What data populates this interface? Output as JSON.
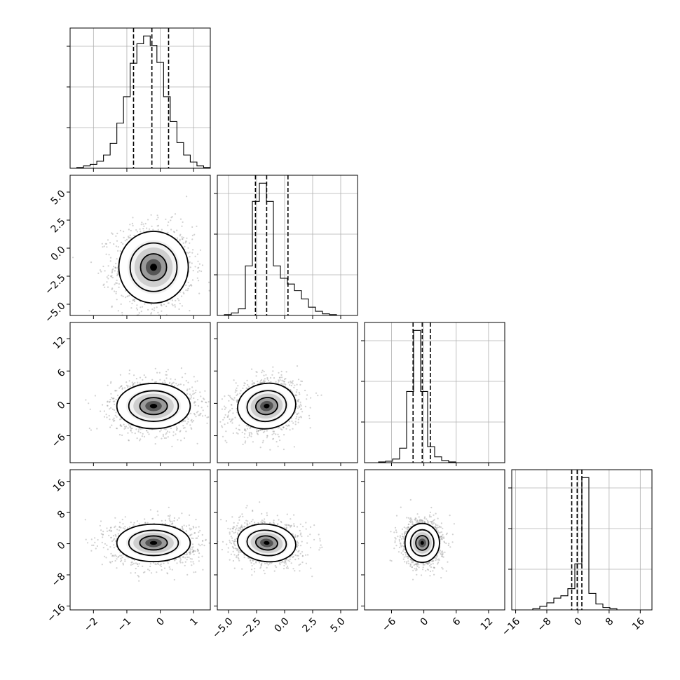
{
  "chart_data": {
    "type": "corner",
    "grid": true,
    "parameters": [
      {
        "index": 0,
        "range": [
          -2.7,
          1.5
        ],
        "ticks": [
          -2,
          -1,
          0,
          1
        ],
        "tick_labels": [
          "−2",
          "−1",
          "0",
          "1"
        ],
        "quantiles": [
          -0.8,
          -0.25,
          0.25
        ],
        "hist_counts": [
          0,
          1,
          3,
          5,
          9,
          17,
          32,
          58,
          92,
          135,
          160,
          170,
          158,
          136,
          92,
          60,
          33,
          17,
          8,
          3,
          1
        ]
      },
      {
        "index": 1,
        "range": [
          -6.0,
          6.5
        ],
        "ticks": [
          -5.0,
          -2.5,
          0.0,
          2.5,
          5.0
        ],
        "tick_labels": [
          "−5.0",
          "−2.5",
          "0.0",
          "2.5",
          "5.0"
        ],
        "quantiles": [
          -2.6,
          -1.6,
          0.3
        ],
        "hist_counts": [
          0,
          1,
          3,
          8,
          60,
          138,
          160,
          138,
          60,
          45,
          38,
          30,
          20,
          10,
          5,
          2,
          1,
          0,
          0,
          0
        ]
      },
      {
        "index": 2,
        "range": [
          -11,
          15
        ],
        "ticks": [
          -6,
          0,
          6,
          12
        ],
        "tick_labels": [
          "−6",
          "0",
          "6",
          "12"
        ],
        "quantiles": [
          -2.0,
          -0.3,
          1.2
        ],
        "hist_counts": [
          0,
          0,
          1,
          2,
          5,
          20,
          98,
          182,
          98,
          22,
          8,
          3,
          1,
          0,
          0,
          0,
          0,
          0,
          0,
          0
        ]
      },
      {
        "index": 3,
        "range": [
          -17,
          19
        ],
        "ticks": [
          -16,
          -8,
          0,
          8,
          16
        ],
        "tick_labels": [
          "−16",
          "−8",
          "0",
          "8",
          "16"
        ],
        "quantiles": [
          -1.6,
          -0.2,
          1.0
        ],
        "hist_counts": [
          0,
          0,
          0,
          1,
          3,
          6,
          10,
          12,
          18,
          39,
          112,
          14,
          5,
          2,
          1,
          0,
          0,
          0,
          0,
          0
        ]
      }
    ],
    "pairs": [
      {
        "row": 1,
        "col": 0,
        "mean": [
          -0.2,
          -1.7
        ],
        "sd": [
          0.52,
          1.6
        ],
        "corr": 0.0,
        "contour_scale": 1.0
      },
      {
        "row": 2,
        "col": 0,
        "mean": [
          -0.2,
          -0.5
        ],
        "sd": [
          0.55,
          2.1
        ],
        "corr": 0.0,
        "contour_scale": 1.0
      },
      {
        "row": 2,
        "col": 1,
        "mean": [
          -1.6,
          -0.5
        ],
        "sd": [
          1.3,
          2.1
        ],
        "corr": 0.15,
        "contour_scale": 1.0
      },
      {
        "row": 3,
        "col": 0,
        "mean": [
          -0.2,
          0.2
        ],
        "sd": [
          0.55,
          2.4
        ],
        "corr": 0.0,
        "contour_scale": 1.0
      },
      {
        "row": 3,
        "col": 1,
        "mean": [
          -1.6,
          0.2
        ],
        "sd": [
          1.3,
          2.4
        ],
        "corr": -0.1,
        "contour_scale": 1.0
      },
      {
        "row": 3,
        "col": 2,
        "mean": [
          -0.3,
          0.2
        ],
        "sd": [
          1.6,
          2.5
        ],
        "corr": 0.0,
        "contour_scale": 1.0
      }
    ]
  }
}
